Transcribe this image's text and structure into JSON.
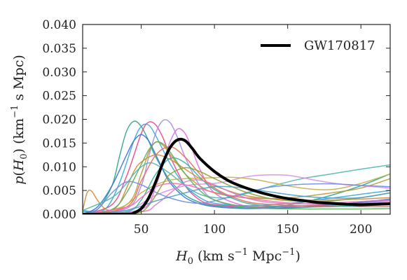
{
  "chart_data": {
    "type": "line",
    "xlabel_parts": {
      "var": "H",
      "sub": "0",
      "pre": " (km s",
      "sup1": "−1",
      "mid": " Mpc",
      "sup2": "−1",
      "post": ")"
    },
    "ylabel_parts": {
      "func": "p",
      "open": "(",
      "var": "H",
      "sub": "0",
      "close": ")",
      "pre": " (km",
      "sup": "−1",
      "post": " s Mpc)"
    },
    "xlim": [
      10,
      220
    ],
    "ylim": [
      0,
      0.04
    ],
    "x_ticks": [
      50,
      100,
      150,
      200
    ],
    "y_ticks": [
      0.0,
      0.005,
      0.01,
      0.015,
      0.02,
      0.025,
      0.03,
      0.035,
      0.04
    ],
    "y_tick_labels": [
      "0.000",
      "0.005",
      "0.010",
      "0.015",
      "0.020",
      "0.025",
      "0.030",
      "0.035",
      "0.040"
    ],
    "grid": false,
    "legend": {
      "placement": "top-right",
      "entries": [
        {
          "label": "GW170817",
          "color": "#000000"
        }
      ]
    },
    "highlight": {
      "name": "GW170817",
      "color": "#000000",
      "x": [
        10,
        40,
        45,
        50,
        55,
        60,
        65,
        70,
        75,
        80,
        85,
        90,
        100,
        110,
        120,
        130,
        140,
        150,
        160,
        170,
        180,
        190,
        200,
        210,
        220
      ],
      "y": [
        0.0,
        0.0,
        0.0003,
        0.0012,
        0.0034,
        0.0069,
        0.011,
        0.0142,
        0.0157,
        0.0155,
        0.0138,
        0.0118,
        0.009,
        0.007,
        0.0057,
        0.0047,
        0.0039,
        0.0033,
        0.0029,
        0.0025,
        0.0023,
        0.0021,
        0.002,
        0.0021,
        0.0022
      ]
    },
    "series": [
      {
        "color": "#2ca58d",
        "x": [
          10,
          20,
          30,
          35,
          40,
          45,
          50,
          55,
          60,
          70,
          80,
          90,
          100,
          120,
          140,
          160,
          180,
          200,
          220
        ],
        "y": [
          0.0008,
          0.001,
          0.006,
          0.012,
          0.0175,
          0.0196,
          0.0185,
          0.0155,
          0.012,
          0.007,
          0.004,
          0.0025,
          0.0018,
          0.0014,
          0.0015,
          0.0025,
          0.004,
          0.006,
          0.0085
        ]
      },
      {
        "color": "#e8488a",
        "x": [
          10,
          30,
          40,
          50,
          55,
          60,
          65,
          70,
          80,
          90,
          100,
          120,
          140,
          160,
          180,
          200,
          220
        ],
        "y": [
          0.0,
          0.002,
          0.008,
          0.017,
          0.0194,
          0.0188,
          0.016,
          0.012,
          0.006,
          0.003,
          0.002,
          0.0016,
          0.0016,
          0.0018,
          0.002,
          0.0025,
          0.003
        ]
      },
      {
        "color": "#a58df0",
        "x": [
          10,
          40,
          50,
          55,
          60,
          65,
          70,
          75,
          80,
          90,
          100,
          120,
          140,
          160,
          180,
          200,
          220
        ],
        "y": [
          0.0,
          0.0012,
          0.006,
          0.012,
          0.0172,
          0.0198,
          0.0192,
          0.016,
          0.012,
          0.006,
          0.003,
          0.0015,
          0.0012,
          0.0014,
          0.0018,
          0.0023,
          0.0028
        ]
      },
      {
        "color": "#e06ee0",
        "x": [
          10,
          50,
          60,
          65,
          70,
          75,
          80,
          85,
          90,
          100,
          120,
          140,
          160,
          180,
          200,
          220
        ],
        "y": [
          0.0,
          0.001,
          0.006,
          0.011,
          0.0155,
          0.018,
          0.017,
          0.0135,
          0.0095,
          0.0045,
          0.0018,
          0.0013,
          0.0015,
          0.0018,
          0.002,
          0.0025
        ]
      },
      {
        "color": "#3ba7e0",
        "x": [
          10,
          25,
          35,
          45,
          50,
          55,
          60,
          70,
          80,
          90,
          100,
          120,
          140,
          160,
          180,
          200,
          220
        ],
        "y": [
          0.0005,
          0.001,
          0.0065,
          0.0155,
          0.0185,
          0.0188,
          0.0165,
          0.0105,
          0.006,
          0.0035,
          0.0023,
          0.0018,
          0.002,
          0.0026,
          0.0034,
          0.0042,
          0.005
        ]
      },
      {
        "color": "#b89a3c",
        "x": [
          10,
          40,
          50,
          55,
          60,
          65,
          70,
          80,
          90,
          100,
          120,
          140,
          160,
          180,
          200,
          220
        ],
        "y": [
          0.0,
          0.002,
          0.0085,
          0.013,
          0.0152,
          0.0145,
          0.0125,
          0.0085,
          0.006,
          0.0045,
          0.0035,
          0.0033,
          0.0037,
          0.0045,
          0.0055,
          0.0075
        ]
      },
      {
        "color": "#d18a3a",
        "x": [
          10,
          13,
          16,
          20,
          25,
          30,
          35,
          40,
          45,
          50,
          60,
          70,
          80,
          90,
          100,
          120,
          140,
          160,
          180,
          200,
          220
        ],
        "y": [
          0.0007,
          0.0045,
          0.0049,
          0.003,
          0.0012,
          0.0009,
          0.0022,
          0.0055,
          0.009,
          0.011,
          0.0125,
          0.0115,
          0.0095,
          0.0075,
          0.006,
          0.004,
          0.0032,
          0.003,
          0.003,
          0.0032,
          0.0035
        ]
      },
      {
        "color": "#3c73d6",
        "x": [
          10,
          20,
          30,
          40,
          45,
          50,
          55,
          60,
          65,
          70,
          80,
          90,
          100,
          120,
          140,
          160,
          180,
          200,
          220
        ],
        "y": [
          0.0,
          0.0015,
          0.006,
          0.0125,
          0.0155,
          0.0168,
          0.0155,
          0.0125,
          0.0092,
          0.0065,
          0.0035,
          0.0022,
          0.0016,
          0.0012,
          0.0013,
          0.0015,
          0.002,
          0.0025,
          0.0032
        ]
      },
      {
        "color": "#4db8b0",
        "x": [
          10,
          30,
          40,
          45,
          50,
          55,
          60,
          70,
          80,
          90,
          100,
          110,
          120,
          140,
          160,
          180,
          200,
          220
        ],
        "y": [
          0.0008,
          0.0035,
          0.0065,
          0.0085,
          0.01,
          0.0108,
          0.0105,
          0.0085,
          0.006,
          0.0042,
          0.0035,
          0.0035,
          0.0042,
          0.006,
          0.0075,
          0.0085,
          0.0095,
          0.0104
        ]
      },
      {
        "color": "#d98ee8",
        "x": [
          10,
          40,
          60,
          80,
          100,
          110,
          120,
          130,
          140,
          150,
          160,
          170,
          180,
          190,
          200,
          220
        ],
        "y": [
          0.0,
          0.0008,
          0.004,
          0.006,
          0.0065,
          0.007,
          0.0078,
          0.0082,
          0.0083,
          0.0082,
          0.0077,
          0.0071,
          0.0066,
          0.0062,
          0.006,
          0.0055
        ]
      },
      {
        "color": "#c2b04a",
        "x": [
          10,
          30,
          40,
          50,
          60,
          70,
          80,
          90,
          100,
          110,
          120,
          130,
          140,
          160,
          180,
          200,
          220
        ],
        "y": [
          0.0,
          0.0005,
          0.002,
          0.0045,
          0.0062,
          0.0072,
          0.0075,
          0.0076,
          0.0077,
          0.0078,
          0.0076,
          0.0072,
          0.0066,
          0.0055,
          0.0052,
          0.0065,
          0.0085
        ]
      },
      {
        "color": "#6e8fe0",
        "x": [
          10,
          20,
          30,
          40,
          50,
          60,
          70,
          80,
          90,
          100,
          110,
          120,
          130,
          140,
          160,
          180,
          200,
          220
        ],
        "y": [
          0.0,
          0.001,
          0.0045,
          0.0068,
          0.0062,
          0.0046,
          0.0034,
          0.0026,
          0.0023,
          0.0028,
          0.0036,
          0.0044,
          0.0052,
          0.0058,
          0.0063,
          0.0064,
          0.0061,
          0.0058
        ]
      },
      {
        "color": "#e86b5a",
        "x": [
          10,
          40,
          50,
          60,
          70,
          80,
          90,
          100,
          120,
          140,
          160,
          180,
          200,
          220
        ],
        "y": [
          0.0,
          0.0015,
          0.007,
          0.0125,
          0.0142,
          0.012,
          0.0085,
          0.0055,
          0.0028,
          0.002,
          0.0018,
          0.0017,
          0.0016,
          0.0016
        ]
      },
      {
        "color": "#5fae5a",
        "x": [
          10,
          30,
          40,
          50,
          55,
          60,
          65,
          70,
          80,
          90,
          100,
          120,
          140,
          160,
          180,
          200,
          220
        ],
        "y": [
          0.0,
          0.001,
          0.0045,
          0.0105,
          0.0135,
          0.0152,
          0.0148,
          0.013,
          0.0085,
          0.005,
          0.003,
          0.0016,
          0.0012,
          0.0011,
          0.0011,
          0.0011,
          0.0012
        ]
      },
      {
        "color": "#36b3a0",
        "x": [
          10,
          40,
          50,
          60,
          70,
          80,
          90,
          100,
          120,
          140,
          160,
          180,
          200,
          220
        ],
        "y": [
          0.0,
          0.0005,
          0.003,
          0.0085,
          0.0118,
          0.0108,
          0.0078,
          0.0052,
          0.0025,
          0.0017,
          0.0015,
          0.0016,
          0.0018,
          0.002
        ]
      },
      {
        "color": "#d47fc4",
        "x": [
          10,
          50,
          60,
          70,
          80,
          90,
          100,
          110,
          120,
          130,
          140,
          150,
          160,
          180,
          200,
          220
        ],
        "y": [
          0.0,
          0.0005,
          0.002,
          0.0045,
          0.0068,
          0.0072,
          0.0062,
          0.0048,
          0.0036,
          0.0028,
          0.0024,
          0.0022,
          0.0022,
          0.0024,
          0.0027,
          0.003
        ]
      },
      {
        "color": "#8f9e3a",
        "x": [
          10,
          40,
          50,
          55,
          60,
          65,
          70,
          80,
          90,
          100,
          120,
          140,
          160,
          180,
          200,
          220
        ],
        "y": [
          0.0,
          0.0,
          0.0005,
          0.0018,
          0.004,
          0.0065,
          0.0085,
          0.0098,
          0.009,
          0.0075,
          0.0048,
          0.0032,
          0.0027,
          0.0028,
          0.0035,
          0.0045
        ]
      },
      {
        "color": "#4aa0c8",
        "x": [
          10,
          40,
          60,
          80,
          90,
          100,
          110,
          120,
          140,
          160,
          180,
          200,
          220
        ],
        "y": [
          0.0,
          0.0008,
          0.0028,
          0.0045,
          0.0053,
          0.0058,
          0.0058,
          0.0055,
          0.0046,
          0.0038,
          0.0034,
          0.0035,
          0.0045
        ]
      },
      {
        "color": "#ef6fb0",
        "x": [
          10,
          40,
          50,
          60,
          70,
          80,
          90,
          100,
          120,
          140,
          160,
          180,
          200,
          220
        ],
        "y": [
          0.0,
          0.0015,
          0.0035,
          0.0058,
          0.0065,
          0.0062,
          0.0054,
          0.0046,
          0.0035,
          0.0027,
          0.0022,
          0.0021,
          0.0022,
          0.0025
        ]
      }
    ]
  }
}
